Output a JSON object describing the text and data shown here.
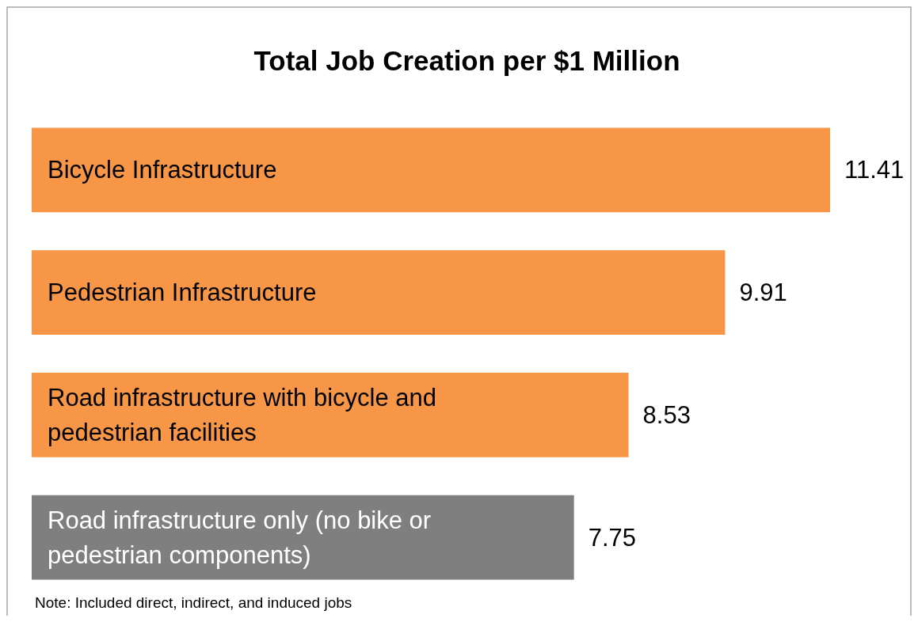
{
  "chart_data": {
    "type": "bar",
    "orientation": "horizontal",
    "title": "Total Job Creation per $1 Million",
    "categories": [
      "Bicycle Infrastructure",
      "Pedestrian Infrastructure",
      "Road infrastructure with bicycle and pedestrian facilities",
      "Road infrastructure only (no bike or pedestrian components)"
    ],
    "values": [
      11.41,
      9.91,
      8.53,
      7.75
    ],
    "colors": [
      "#f79646",
      "#f79646",
      "#f79646",
      "#7f7f7f"
    ],
    "data_labels": true,
    "annotations": [
      "Note: Included direct, indirect, and induced jobs"
    ]
  }
}
